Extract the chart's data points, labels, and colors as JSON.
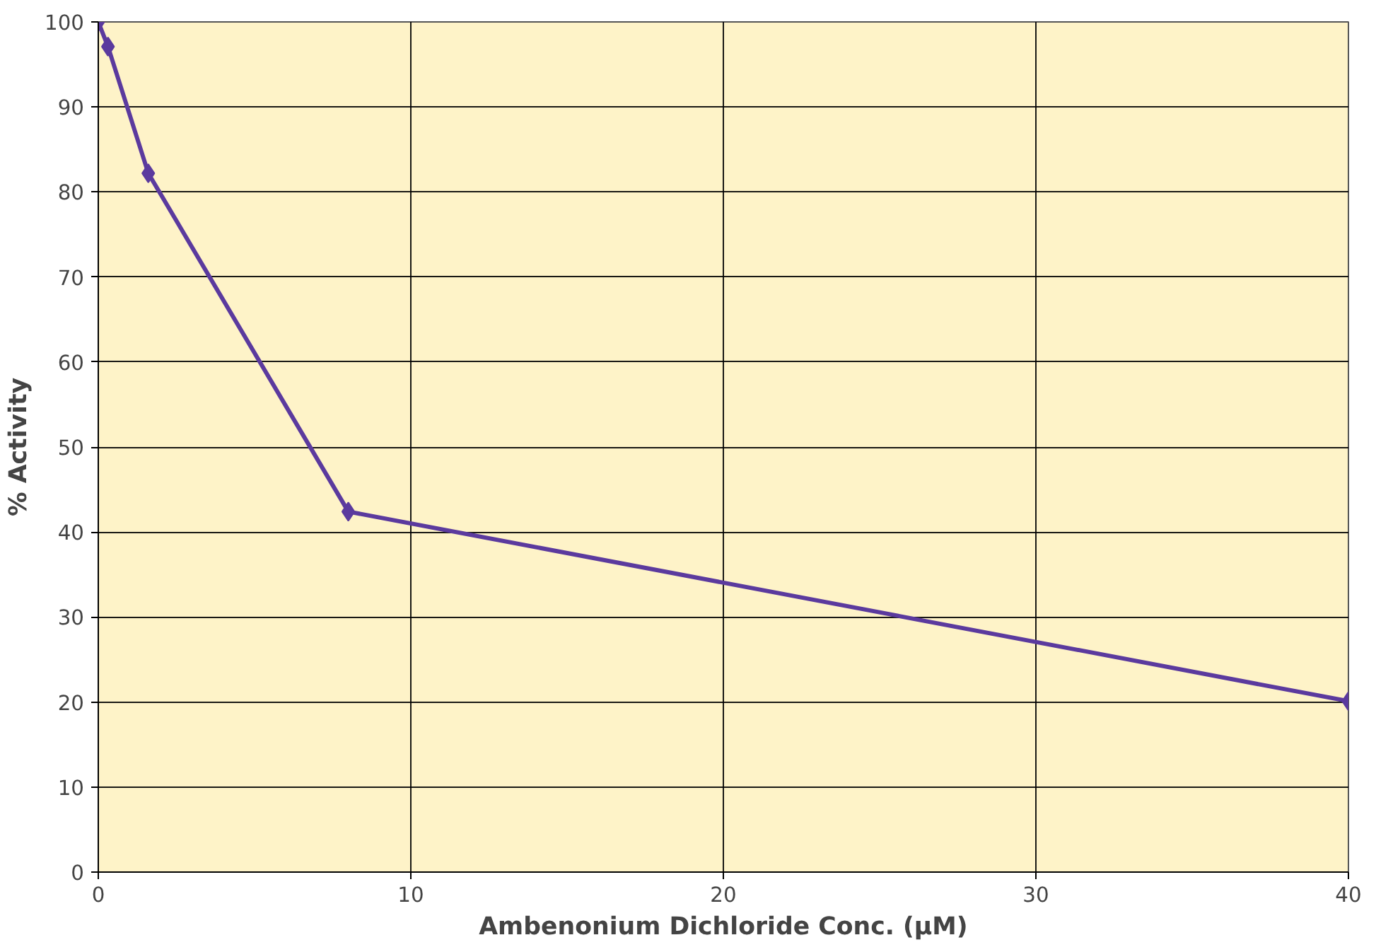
{
  "chart_data": {
    "type": "line",
    "xlabel": "Ambenonium Dichloride Conc. (µM)",
    "ylabel": "% Activity",
    "x": [
      0,
      0.31,
      1.6,
      8,
      40
    ],
    "series": [
      {
        "color": "#5b3a9e",
        "values": [
          100,
          97.1,
          82.2,
          42.4,
          20.1
        ]
      }
    ],
    "xlim": [
      0,
      40
    ],
    "xticks": [
      0,
      10,
      20,
      30,
      40
    ],
    "ylim": [
      0,
      100
    ],
    "yticks": [
      0,
      10,
      20,
      30,
      40,
      50,
      60,
      70,
      80,
      90,
      100
    ],
    "grid": true,
    "marker": "diamond",
    "line_style": "solid"
  }
}
